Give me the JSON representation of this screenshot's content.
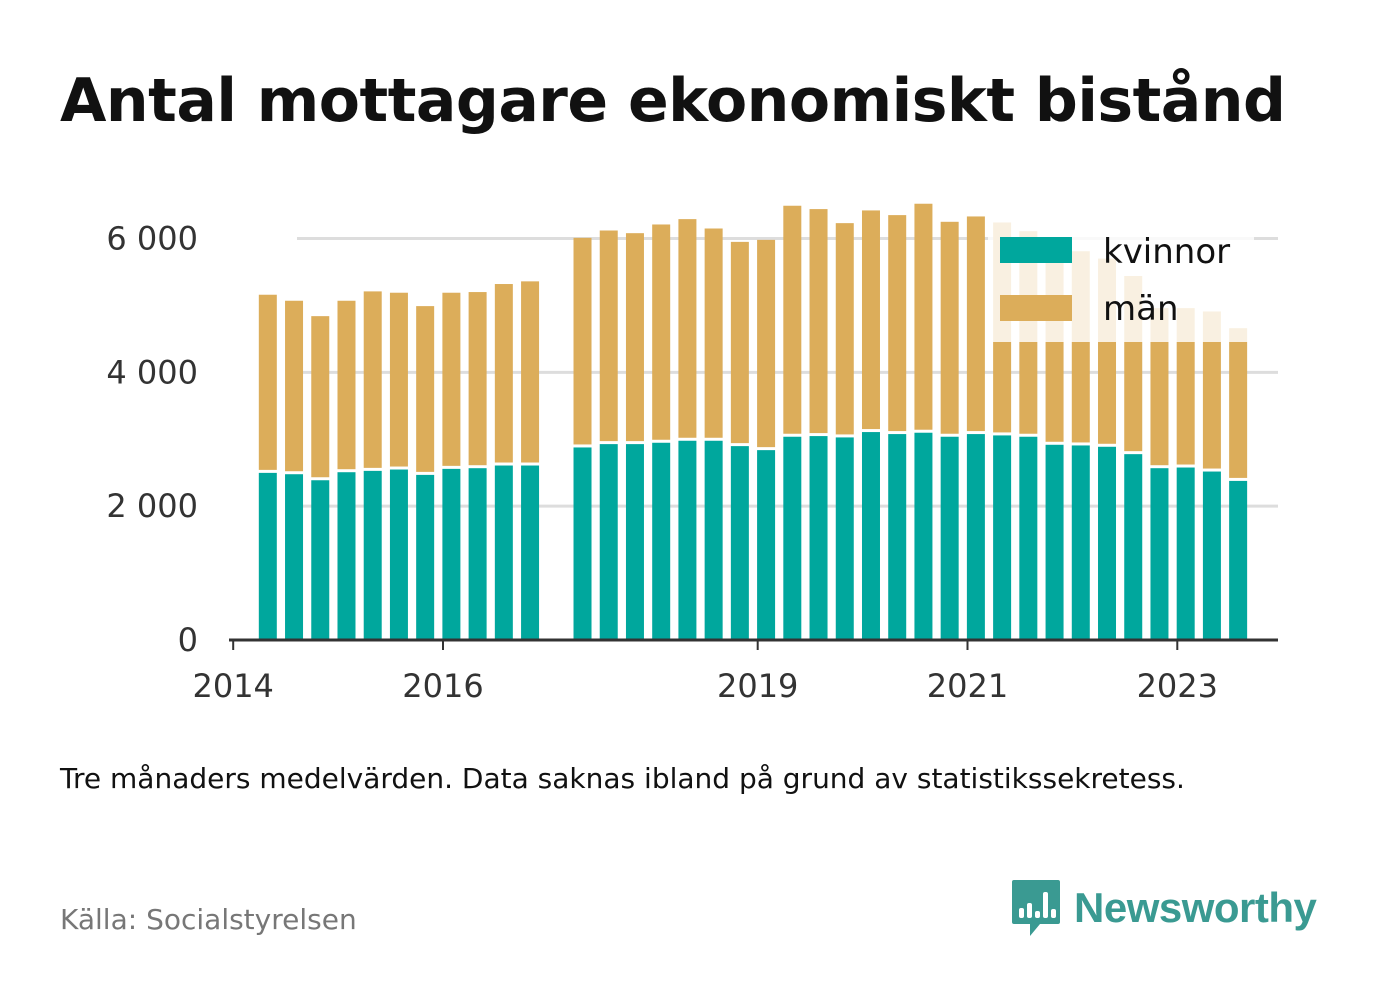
{
  "title": "Antal mottagare ekonomiskt bistånd",
  "note": "Tre månaders medelvärden. Data saknas ibland på grund av statistikssekretess.",
  "source": "Källa: Socialstyrelsen",
  "brand": {
    "name": "Newsworthy",
    "icon": "newsworthy-logo-icon"
  },
  "colors": {
    "kvinnor": "#00a79d",
    "man": "#dcad5a",
    "grid": "#dddddd",
    "axis": "#333333"
  },
  "chart_data": {
    "type": "bar",
    "stacked": true,
    "title": "Antal mottagare ekonomiskt bistånd",
    "xlabel": "",
    "ylabel": "",
    "ylim": [
      0,
      6800
    ],
    "yticks": [
      0,
      2000,
      4000,
      6000
    ],
    "ytick_labels": [
      "0",
      "2 000",
      "4 000",
      "6 000"
    ],
    "xlim": [
      2013.96,
      2023.96
    ],
    "xticks": [
      2014,
      2016,
      2019,
      2021,
      2023
    ],
    "xtick_labels": [
      "2014",
      "2016",
      "2019",
      "2021",
      "2023"
    ],
    "grid": "horizontal",
    "legend_position": "top-right",
    "x": [
      2014.33,
      2014.58,
      2014.83,
      2015.08,
      2015.33,
      2015.58,
      2015.83,
      2016.08,
      2016.33,
      2016.58,
      2016.83,
      2017.33,
      2017.58,
      2017.83,
      2018.08,
      2018.33,
      2018.58,
      2018.83,
      2019.08,
      2019.33,
      2019.58,
      2019.83,
      2020.08,
      2020.33,
      2020.58,
      2020.83,
      2021.08,
      2021.33,
      2021.58,
      2021.83,
      2022.08,
      2022.33,
      2022.58,
      2022.83,
      2023.08,
      2023.33,
      2023.58
    ],
    "series": [
      {
        "name": "kvinnor",
        "values": [
          2520,
          2500,
          2410,
          2530,
          2550,
          2570,
          2490,
          2580,
          2590,
          2630,
          2630,
          2900,
          2950,
          2950,
          2970,
          3000,
          3000,
          2920,
          2860,
          3060,
          3070,
          3050,
          3130,
          3100,
          3120,
          3060,
          3100,
          3080,
          3060,
          2940,
          2930,
          2910,
          2800,
          2590,
          2600,
          2540,
          2400
        ]
      },
      {
        "name": "män",
        "values": [
          2640,
          2570,
          2430,
          2540,
          2660,
          2620,
          2500,
          2610,
          2610,
          2690,
          2730,
          3110,
          3170,
          3130,
          3240,
          3290,
          3150,
          3030,
          3120,
          3430,
          3370,
          3180,
          3290,
          3250,
          3400,
          3190,
          3230,
          3160,
          3050,
          2910,
          2880,
          2790,
          2640,
          2370,
          2360,
          2370,
          2260
        ]
      }
    ]
  }
}
